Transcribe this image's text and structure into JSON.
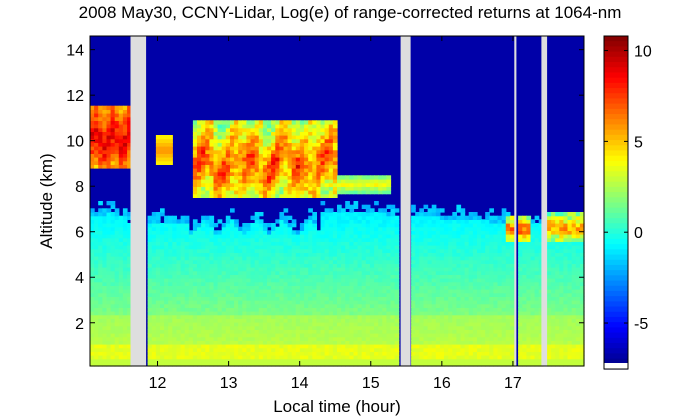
{
  "chart_data": {
    "type": "heatmap",
    "title": "2008 May30, CCNY-Lidar, Log(e) of range-corrected returns at 1064-nm",
    "xlabel": "Local time (hour)",
    "ylabel": "Altitude (km)",
    "xlim": [
      11.05,
      18.0
    ],
    "ylim": [
      0.1,
      14.6
    ],
    "x_ticks": [
      12,
      13,
      14,
      15,
      16,
      17
    ],
    "x_tick_labels": [
      "12",
      "13",
      "14",
      "15",
      "16",
      "17"
    ],
    "y_ticks": [
      2,
      4,
      6,
      8,
      10,
      12,
      14
    ],
    "y_tick_labels": [
      "2",
      "4",
      "6",
      "8",
      "10",
      "12",
      "14"
    ],
    "colorbar": {
      "range": [
        -7.2,
        10.8
      ],
      "ticks": [
        10,
        5,
        0,
        -5
      ],
      "tick_labels": [
        "10",
        "5",
        "0",
        "-5"
      ],
      "colormap": "jet"
    },
    "no_data_gaps_hours": [
      [
        11.62,
        11.84
      ],
      [
        15.42,
        15.56
      ],
      [
        17.02,
        17.05
      ],
      [
        17.4,
        17.48
      ]
    ],
    "aerosol_layer": {
      "altitude_km": [
        0.1,
        6.8
      ],
      "log_returns_range": [
        -1.5,
        3.5
      ]
    },
    "boundary_layer": {
      "altitude_km": [
        0.3,
        2.4
      ],
      "log_returns_range": [
        2.5,
        4.0
      ]
    },
    "cirrus_cloud_layers": [
      {
        "time_hours": [
          11.05,
          11.6
        ],
        "altitude_km": [
          8.9,
          11.5
        ],
        "log_returns_peak": 9
      },
      {
        "time_hours": [
          12.5,
          14.5
        ],
        "altitude_km": [
          7.6,
          10.8
        ],
        "log_returns_peak": 9
      },
      {
        "time_hours": [
          14.5,
          15.3
        ],
        "altitude_km": [
          7.8,
          8.4
        ],
        "log_returns_peak": 4
      },
      {
        "time_hours": [
          17.0,
          18.0
        ],
        "altitude_km": [
          5.6,
          6.6
        ],
        "log_returns_peak": 8
      }
    ],
    "grid": false
  }
}
